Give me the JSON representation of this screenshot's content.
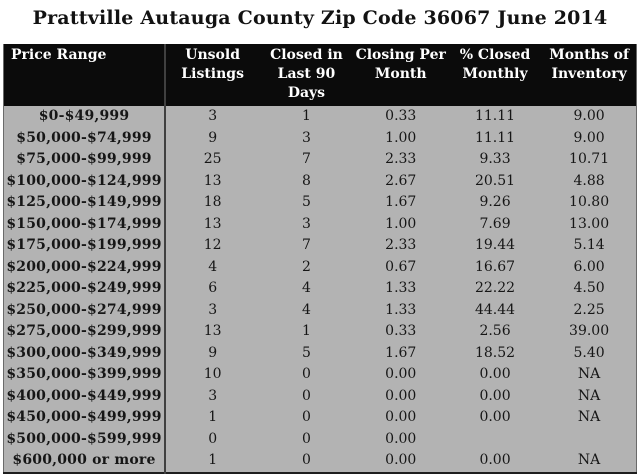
{
  "chart_data": {
    "type": "table",
    "title": "Prattville Autauga County Zip Code 36067 June 2014",
    "columns": [
      "Price Range",
      "Unsold Listings",
      "Closed in Last 90 Days",
      "Closing Per Month",
      "% Closed Monthly",
      "Months of Inventory"
    ],
    "header_lines": [
      "Price Range",
      "Unsold\nListings",
      "Closed in\nLast 90 Days",
      "Closing Per\nMonth",
      "% Closed\nMonthly",
      "Months of\nInventory"
    ],
    "rows": [
      [
        "$0-$49,999",
        "3",
        "1",
        "0.33",
        "11.11",
        "9.00"
      ],
      [
        "$50,000-$74,999",
        "9",
        "3",
        "1.00",
        "11.11",
        "9.00"
      ],
      [
        "$75,000-$99,999",
        "25",
        "7",
        "2.33",
        "9.33",
        "10.71"
      ],
      [
        "$100,000-$124,999",
        "13",
        "8",
        "2.67",
        "20.51",
        "4.88"
      ],
      [
        "$125,000-$149,999",
        "18",
        "5",
        "1.67",
        "9.26",
        "10.80"
      ],
      [
        "$150,000-$174,999",
        "13",
        "3",
        "1.00",
        "7.69",
        "13.00"
      ],
      [
        "$175,000-$199,999",
        "12",
        "7",
        "2.33",
        "19.44",
        "5.14"
      ],
      [
        "$200,000-$224,999",
        "4",
        "2",
        "0.67",
        "16.67",
        "6.00"
      ],
      [
        "$225,000-$249,999",
        "6",
        "4",
        "1.33",
        "22.22",
        "4.50"
      ],
      [
        "$250,000-$274,999",
        "3",
        "4",
        "1.33",
        "44.44",
        "2.25"
      ],
      [
        "$275,000-$299,999",
        "13",
        "1",
        "0.33",
        "2.56",
        "39.00"
      ],
      [
        "$300,000-$349,999",
        "9",
        "5",
        "1.67",
        "18.52",
        "5.40"
      ],
      [
        "$350,000-$399,999",
        "10",
        "0",
        "0.00",
        "0.00",
        "NA"
      ],
      [
        "$400,000-$449,999",
        "3",
        "0",
        "0.00",
        "0.00",
        "NA"
      ],
      [
        "$450,000-$499,999",
        "1",
        "0",
        "0.00",
        "0.00",
        "NA"
      ],
      [
        "$500,000-$599,999",
        "0",
        "0",
        "0.00",
        "",
        ""
      ],
      [
        "$600,000 or more",
        "1",
        "0",
        "0.00",
        "0.00",
        "NA"
      ]
    ],
    "na_text": "NA"
  },
  "colors": {
    "header_bg": "#0b0b0b",
    "header_text": "#ffffff",
    "row_bg": "#b3b3b3",
    "divider": "#404040",
    "body_text": "#161616",
    "page_bg": "#ffffff"
  }
}
